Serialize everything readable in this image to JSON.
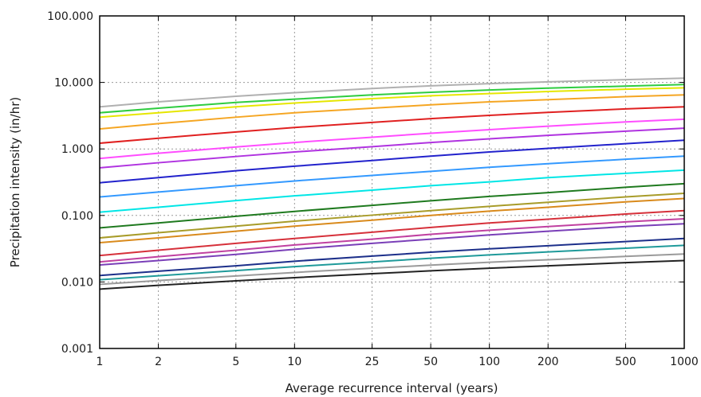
{
  "chart_data": {
    "type": "line",
    "title": "",
    "xlabel": "Average recurrence interval (years)",
    "ylabel": "Precipitation intensity (in/hr)",
    "x_scale": "log",
    "y_scale": "log",
    "xlim": [
      1,
      1000
    ],
    "ylim": [
      0.001,
      100
    ],
    "grid": true,
    "legend": "none",
    "x_ticks": [
      "1",
      "2",
      "5",
      "10",
      "25",
      "50",
      "100",
      "200",
      "500",
      "1000"
    ],
    "y_ticks": [
      "0.001",
      "0.010",
      "0.100",
      "1.000",
      "10.000",
      "100.000"
    ],
    "x": [
      1,
      2,
      5,
      10,
      25,
      50,
      100,
      200,
      500,
      1000
    ],
    "series": [
      {
        "color": "#b0b0b0",
        "values": [
          4.3,
          5.1,
          6.2,
          7.0,
          8.1,
          8.9,
          9.6,
          10.2,
          11.0,
          11.6
        ]
      },
      {
        "color": "#2ecc40",
        "values": [
          3.5,
          4.1,
          5.0,
          5.6,
          6.5,
          7.1,
          7.7,
          8.2,
          8.8,
          9.3
        ]
      },
      {
        "color": "#e6e600",
        "values": [
          3.0,
          3.5,
          4.3,
          4.9,
          5.7,
          6.3,
          6.8,
          7.3,
          7.9,
          8.3
        ]
      },
      {
        "color": "#f5a623",
        "values": [
          2.0,
          2.4,
          3.0,
          3.5,
          4.1,
          4.6,
          5.1,
          5.5,
          6.1,
          6.5
        ]
      },
      {
        "color": "#e02020",
        "values": [
          1.22,
          1.45,
          1.8,
          2.1,
          2.5,
          2.85,
          3.2,
          3.55,
          4.0,
          4.3
        ]
      },
      {
        "color": "#ff4dff",
        "values": [
          0.72,
          0.86,
          1.07,
          1.25,
          1.5,
          1.72,
          1.95,
          2.2,
          2.55,
          2.8
        ]
      },
      {
        "color": "#b033e0",
        "values": [
          0.52,
          0.62,
          0.77,
          0.9,
          1.08,
          1.25,
          1.42,
          1.6,
          1.85,
          2.05
        ]
      },
      {
        "color": "#2222cc",
        "values": [
          0.31,
          0.37,
          0.47,
          0.55,
          0.67,
          0.78,
          0.9,
          1.02,
          1.2,
          1.35
        ]
      },
      {
        "color": "#3399ff",
        "values": [
          0.19,
          0.225,
          0.28,
          0.33,
          0.4,
          0.46,
          0.53,
          0.6,
          0.7,
          0.78
        ]
      },
      {
        "color": "#00e6e6",
        "values": [
          0.112,
          0.133,
          0.167,
          0.197,
          0.24,
          0.28,
          0.32,
          0.37,
          0.43,
          0.48
        ]
      },
      {
        "color": "#1f7a1f",
        "values": [
          0.065,
          0.077,
          0.097,
          0.115,
          0.142,
          0.166,
          0.193,
          0.22,
          0.265,
          0.3
        ]
      },
      {
        "color": "#a89c2a",
        "values": [
          0.046,
          0.055,
          0.069,
          0.082,
          0.101,
          0.118,
          0.137,
          0.158,
          0.19,
          0.215
        ]
      },
      {
        "color": "#d98a1c",
        "values": [
          0.039,
          0.046,
          0.058,
          0.069,
          0.085,
          0.1,
          0.116,
          0.133,
          0.16,
          0.18
        ]
      },
      {
        "color": "#d6303a",
        "values": [
          0.025,
          0.03,
          0.038,
          0.045,
          0.056,
          0.066,
          0.077,
          0.088,
          0.105,
          0.118
        ]
      },
      {
        "color": "#c040a0",
        "values": [
          0.02,
          0.024,
          0.03,
          0.036,
          0.044,
          0.052,
          0.06,
          0.068,
          0.08,
          0.089
        ]
      },
      {
        "color": "#7a3fb8",
        "values": [
          0.018,
          0.021,
          0.026,
          0.031,
          0.038,
          0.044,
          0.051,
          0.058,
          0.068,
          0.075
        ]
      },
      {
        "color": "#1c2f8a",
        "values": [
          0.0125,
          0.0145,
          0.0175,
          0.0205,
          0.0245,
          0.028,
          0.0315,
          0.035,
          0.0405,
          0.045
        ]
      },
      {
        "color": "#1f9a9a",
        "values": [
          0.0108,
          0.0124,
          0.0148,
          0.017,
          0.02,
          0.0227,
          0.0255,
          0.0283,
          0.0322,
          0.0355
        ]
      },
      {
        "color": "#9a9a9a",
        "values": [
          0.0092,
          0.0105,
          0.0123,
          0.0139,
          0.0161,
          0.0179,
          0.0198,
          0.0216,
          0.0242,
          0.0263
        ]
      },
      {
        "color": "#222222",
        "values": [
          0.0078,
          0.0089,
          0.0104,
          0.0116,
          0.0133,
          0.0147,
          0.0161,
          0.0175,
          0.0195,
          0.021
        ]
      }
    ]
  }
}
